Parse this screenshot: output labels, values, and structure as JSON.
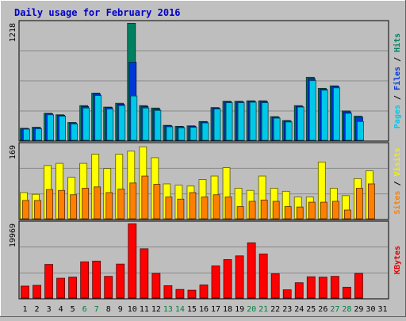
{
  "chart_data": [
    {
      "type": "bar",
      "title": "Daily usage for February 2016",
      "panel": "top",
      "ymax_label": "1218",
      "ylim": [
        0,
        1218
      ],
      "ylabel_parts": [
        {
          "text": "Pages",
          "color": "#00C8E8"
        },
        {
          "text": " / ",
          "color": "#000000"
        },
        {
          "text": "Files",
          "color": "#0038D8"
        },
        {
          "text": " / ",
          "color": "#000000"
        },
        {
          "text": "Hits",
          "color": "#008060"
        }
      ],
      "categories": [
        "1",
        "2",
        "3",
        "4",
        "5",
        "6",
        "7",
        "8",
        "9",
        "10",
        "11",
        "12",
        "13",
        "14",
        "15",
        "16",
        "17",
        "18",
        "19",
        "20",
        "21",
        "22",
        "23",
        "24",
        "25",
        "26",
        "27",
        "28",
        "29",
        "30",
        "31"
      ],
      "series": [
        {
          "name": "Hits",
          "color": "#008060",
          "values": [
            125,
            135,
            280,
            265,
            185,
            360,
            490,
            345,
            385,
            1215,
            360,
            335,
            155,
            145,
            150,
            195,
            340,
            405,
            405,
            410,
            410,
            245,
            205,
            360,
            655,
            540,
            565,
            305,
            250,
            null,
            null
          ]
        },
        {
          "name": "Files",
          "color": "#0038D8",
          "values": [
            120,
            130,
            275,
            260,
            180,
            350,
            480,
            340,
            375,
            810,
            350,
            325,
            150,
            140,
            145,
            190,
            335,
            400,
            400,
            405,
            405,
            240,
            200,
            350,
            640,
            530,
            560,
            295,
            240,
            null,
            null
          ]
        },
        {
          "name": "Pages",
          "color": "#00C8E8",
          "values": [
            115,
            120,
            265,
            250,
            170,
            335,
            465,
            325,
            360,
            460,
            335,
            310,
            140,
            130,
            135,
            180,
            325,
            390,
            390,
            395,
            390,
            230,
            190,
            345,
            620,
            520,
            545,
            280,
            195,
            null,
            null
          ]
        }
      ]
    },
    {
      "type": "bar",
      "panel": "middle",
      "ymax_label": "169",
      "ylim": [
        0,
        169
      ],
      "ylabel_parts": [
        {
          "text": "Sites",
          "color": "#FF8000"
        },
        {
          "text": " / ",
          "color": "#000000"
        },
        {
          "text": "Visits",
          "color": "#F0F000"
        }
      ],
      "categories": [
        "1",
        "2",
        "3",
        "4",
        "5",
        "6",
        "7",
        "8",
        "9",
        "10",
        "11",
        "12",
        "13",
        "14",
        "15",
        "16",
        "17",
        "18",
        "19",
        "20",
        "21",
        "22",
        "23",
        "24",
        "25",
        "26",
        "27",
        "28",
        "29",
        "30",
        "31"
      ],
      "series": [
        {
          "name": "Visits",
          "color": "#FFFF00",
          "values": [
            60,
            56,
            122,
            127,
            95,
            127,
            148,
            115,
            148,
            155,
            165,
            140,
            80,
            77,
            75,
            90,
            98,
            117,
            70,
            65,
            98,
            70,
            63,
            50,
            50,
            130,
            70,
            53,
            92,
            110,
            null
          ]
        },
        {
          "name": "Sites",
          "color": "#FF8000",
          "values": [
            42,
            42,
            67,
            65,
            55,
            70,
            73,
            60,
            68,
            82,
            98,
            79,
            50,
            45,
            60,
            50,
            55,
            50,
            28,
            40,
            43,
            40,
            28,
            27,
            38,
            38,
            40,
            20,
            70,
            80,
            null
          ]
        }
      ]
    },
    {
      "type": "bar",
      "panel": "bottom",
      "ymax_label": "19969",
      "ylim": [
        0,
        19969
      ],
      "ylabel_parts": [
        {
          "text": "KBytes",
          "color": "#E00000"
        }
      ],
      "categories": [
        "1",
        "2",
        "3",
        "4",
        "5",
        "6",
        "7",
        "8",
        "9",
        "10",
        "11",
        "12",
        "13",
        "14",
        "15",
        "16",
        "17",
        "18",
        "19",
        "20",
        "21",
        "22",
        "23",
        "24",
        "25",
        "26",
        "27",
        "28",
        "29",
        "30",
        "31"
      ],
      "series": [
        {
          "name": "KBytes",
          "color": "#FF0000",
          "values": [
            3200,
            3400,
            9000,
            5300,
            5600,
            9700,
            9900,
            5800,
            9100,
            19900,
            13200,
            6600,
            3300,
            2300,
            2100,
            3500,
            8600,
            10300,
            11300,
            14800,
            11800,
            6500,
            2200,
            4100,
            5700,
            5600,
            5800,
            2900,
            6600,
            null,
            null
          ]
        }
      ]
    }
  ],
  "x_axis": {
    "labels": [
      "1",
      "2",
      "3",
      "4",
      "5",
      "6",
      "7",
      "8",
      "9",
      "10",
      "11",
      "12",
      "13",
      "14",
      "15",
      "16",
      "17",
      "18",
      "19",
      "20",
      "21",
      "22",
      "23",
      "24",
      "25",
      "26",
      "27",
      "28",
      "29",
      "30",
      "31"
    ],
    "weekend_days": [
      6,
      7,
      13,
      14,
      20,
      21,
      27,
      28
    ],
    "weekday_color": "#000000",
    "weekend_color": "#008040"
  },
  "colors": {
    "background": "#C0C0C0",
    "plot_background": "#BEBEBE",
    "grid": "#8A8A8A",
    "title": "#0000C8"
  }
}
